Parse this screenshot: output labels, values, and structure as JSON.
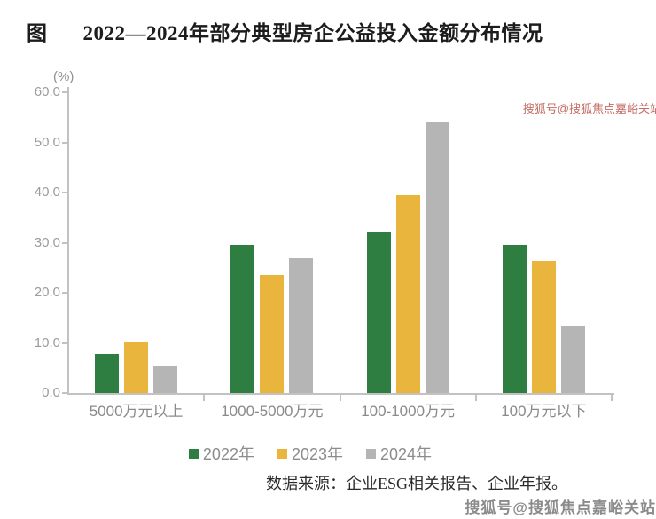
{
  "figure": {
    "prefix": "图",
    "title": "2022—2024年部分典型房企公益投入金额分布情况"
  },
  "source_note": "数据来源：企业ESG相关报告、企业年报。",
  "watermarks": {
    "top_right": "搜狐号@搜狐焦点嘉峪关站",
    "bottom_right": "搜狐号@搜狐焦点嘉峪关站"
  },
  "chart_data": {
    "type": "bar",
    "title": "2022—2024年部分典型房企公益投入金额分布情况",
    "unit_label": "(%)",
    "xlabel": "",
    "ylabel": "(%)",
    "categories": [
      "5000万元以上",
      "1000-5000万元",
      "100-1000万元",
      "100万元以下"
    ],
    "series": [
      {
        "name": "2022年",
        "color": "#2E7D41",
        "values": [
          7.8,
          29.5,
          32.3,
          29.5
        ]
      },
      {
        "name": "2023年",
        "color": "#E9B53C",
        "values": [
          10.3,
          23.5,
          39.4,
          26.3
        ]
      },
      {
        "name": "2024年",
        "color": "#B5B5B5",
        "values": [
          5.3,
          26.9,
          53.9,
          13.3
        ]
      }
    ],
    "ylim": [
      0,
      60
    ],
    "yticks": [
      "0.0",
      "10.0",
      "20.0",
      "30.0",
      "40.0",
      "50.0",
      "60.0"
    ],
    "grid": false,
    "legend_position": "bottom"
  }
}
